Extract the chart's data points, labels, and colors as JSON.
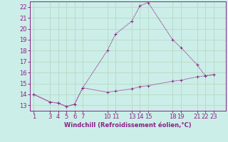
{
  "xlabel": "Windchill (Refroidissement éolien,°C)",
  "background_color": "#cceee8",
  "grid_color": "#bbddcc",
  "line_color": "#882288",
  "ylim": [
    12.5,
    22.5
  ],
  "xlim": [
    0.5,
    24.5
  ],
  "y_ticks": [
    13,
    14,
    15,
    16,
    17,
    18,
    19,
    20,
    21,
    22
  ],
  "x_tick_positions": [
    1,
    3,
    4,
    5,
    6,
    7,
    10,
    11,
    13,
    14,
    15,
    18,
    19,
    21,
    22,
    23
  ],
  "x_tick_labels": [
    "1",
    "3",
    "4",
    "5",
    "6",
    "7",
    "10",
    "11",
    "13",
    "14",
    "15",
    "18",
    "19",
    "21",
    "22",
    "23"
  ],
  "series1_x": [
    1,
    3,
    4,
    5,
    6,
    7,
    10,
    11,
    13,
    14,
    15,
    18,
    19,
    21,
    22,
    23
  ],
  "series1_y": [
    14.0,
    13.3,
    13.2,
    12.9,
    13.1,
    14.6,
    18.0,
    19.5,
    20.7,
    22.1,
    22.4,
    19.0,
    18.3,
    16.7,
    15.7,
    15.8
  ],
  "series2_x": [
    1,
    3,
    4,
    5,
    6,
    7,
    10,
    11,
    13,
    14,
    15,
    18,
    19,
    21,
    22,
    23
  ],
  "series2_y": [
    14.0,
    13.3,
    13.2,
    12.9,
    13.1,
    14.6,
    14.2,
    14.3,
    14.5,
    14.7,
    14.8,
    15.2,
    15.3,
    15.6,
    15.7,
    15.8
  ],
  "tick_labelsize": 6,
  "xlabel_fontsize": 6
}
